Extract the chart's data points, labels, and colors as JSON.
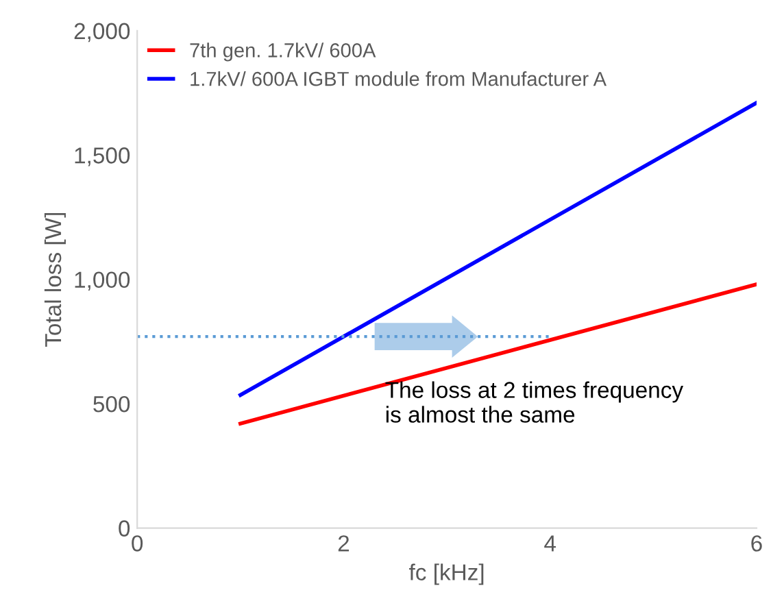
{
  "chart_data": {
    "type": "line",
    "xlabel": "fc [kHz]",
    "ylabel": "Total loss [W]",
    "xlim": [
      0,
      6
    ],
    "ylim": [
      0,
      2000
    ],
    "xticks": [
      0,
      2,
      4,
      6
    ],
    "yticks": [
      0,
      {
        "value": 500,
        "label": "500"
      },
      {
        "value": 1000,
        "label": "1,000"
      },
      {
        "value": 1500,
        "label": "1,500"
      },
      {
        "value": 2000,
        "label": "2,000"
      }
    ],
    "series": [
      {
        "name": "7th gen. 1.7kV/ 600A",
        "color": "#ff0000",
        "x": [
          1,
          6
        ],
        "values": [
          420,
          980
        ]
      },
      {
        "name": "1.7kV/ 600A IGBT module from Manufacturer A",
        "color": "#0000ff",
        "x": [
          1,
          6
        ],
        "values": [
          535,
          1710
        ]
      },
      {
        "color": "#5b9bd5",
        "x": [
          0,
          4
        ],
        "values": [
          770,
          770
        ],
        "line_style": "dotted"
      }
    ],
    "annotations": [
      "The loss at 2 times frequency\nis almost the same"
    ],
    "grid": false,
    "legend": "top left",
    "marker": "none"
  }
}
